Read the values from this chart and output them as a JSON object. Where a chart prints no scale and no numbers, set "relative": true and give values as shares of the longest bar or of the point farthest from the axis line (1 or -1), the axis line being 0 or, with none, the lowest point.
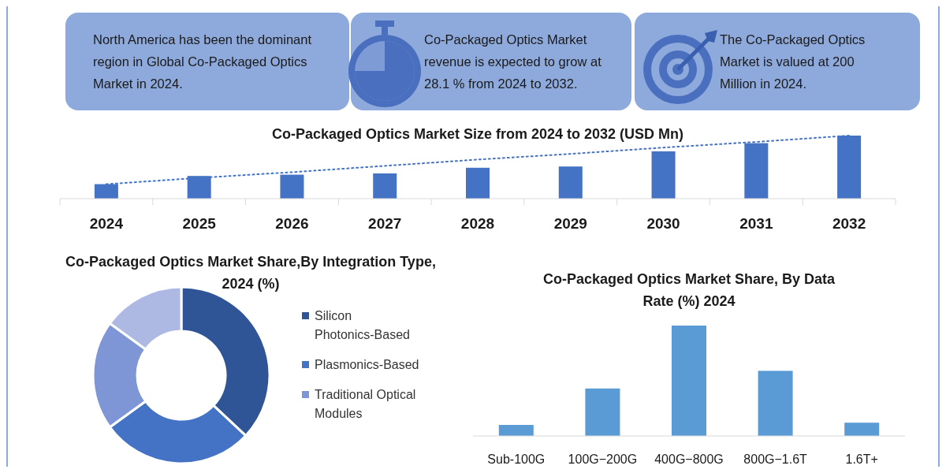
{
  "chart_data": [
    {
      "type": "other",
      "annotations": [
        "North America has been the dominant region in Global Co-Packaged Optics Market in 2024."
      ]
    },
    {
      "type": "other",
      "annotations": [
        "Co-Packaged Optics Market revenue is expected to grow at 28.1 % from 2024 to 2032."
      ]
    },
    {
      "type": "other",
      "annotations": [
        "The Co-Packaged Optics Market is valued at 200 Million in 2024."
      ]
    },
    {
      "type": "bar",
      "title": "Co-Packaged Optics Market Size from 2024 to 2032 (USD Mn)",
      "relative": true,
      "categories": [
        "2024",
        "2025",
        "2026",
        "2027",
        "2028",
        "2029",
        "2030",
        "2031",
        "2032"
      ],
      "series": [
        {
          "type": "bar",
          "color": "#4472c4",
          "values": [
            0.23,
            0.36,
            0.38,
            0.4,
            0.49,
            0.51,
            0.75,
            0.88,
            1
          ]
        },
        {
          "type": "line",
          "color": "#4472c4",
          "line_style": "dotted",
          "values": [
            0.23,
            0.33,
            0.42,
            0.52,
            0.62,
            0.71,
            0.81,
            0.9,
            1
          ]
        }
      ],
      "grid": false,
      "legend": false
    },
    {
      "type": "donut",
      "title": "Co-Packaged Optics Market Share,By Integration Type, 2024 (%)",
      "categories": [
        "Silicon Photonics-Based",
        "Plasmonics-Based",
        "Traditional Optical Modules",
        null
      ],
      "values": [
        37,
        28,
        20,
        15
      ],
      "colors": [
        "#2f5597",
        "#4472c4",
        "#7f96d6",
        "#adb9e3"
      ],
      "legend": "right"
    },
    {
      "type": "bar",
      "title": "Co-Packaged Optics Market Share, By Data Rate (%) 2024",
      "relative": true,
      "categories": [
        "Sub-100G",
        "100G−200G",
        "400G−800G",
        "800G−1.6T",
        "1.6T+"
      ],
      "values": [
        0.1,
        0.43,
        1,
        0.59,
        0.12
      ],
      "color": "#5b9bd5",
      "grid": false,
      "legend": false
    }
  ]
}
